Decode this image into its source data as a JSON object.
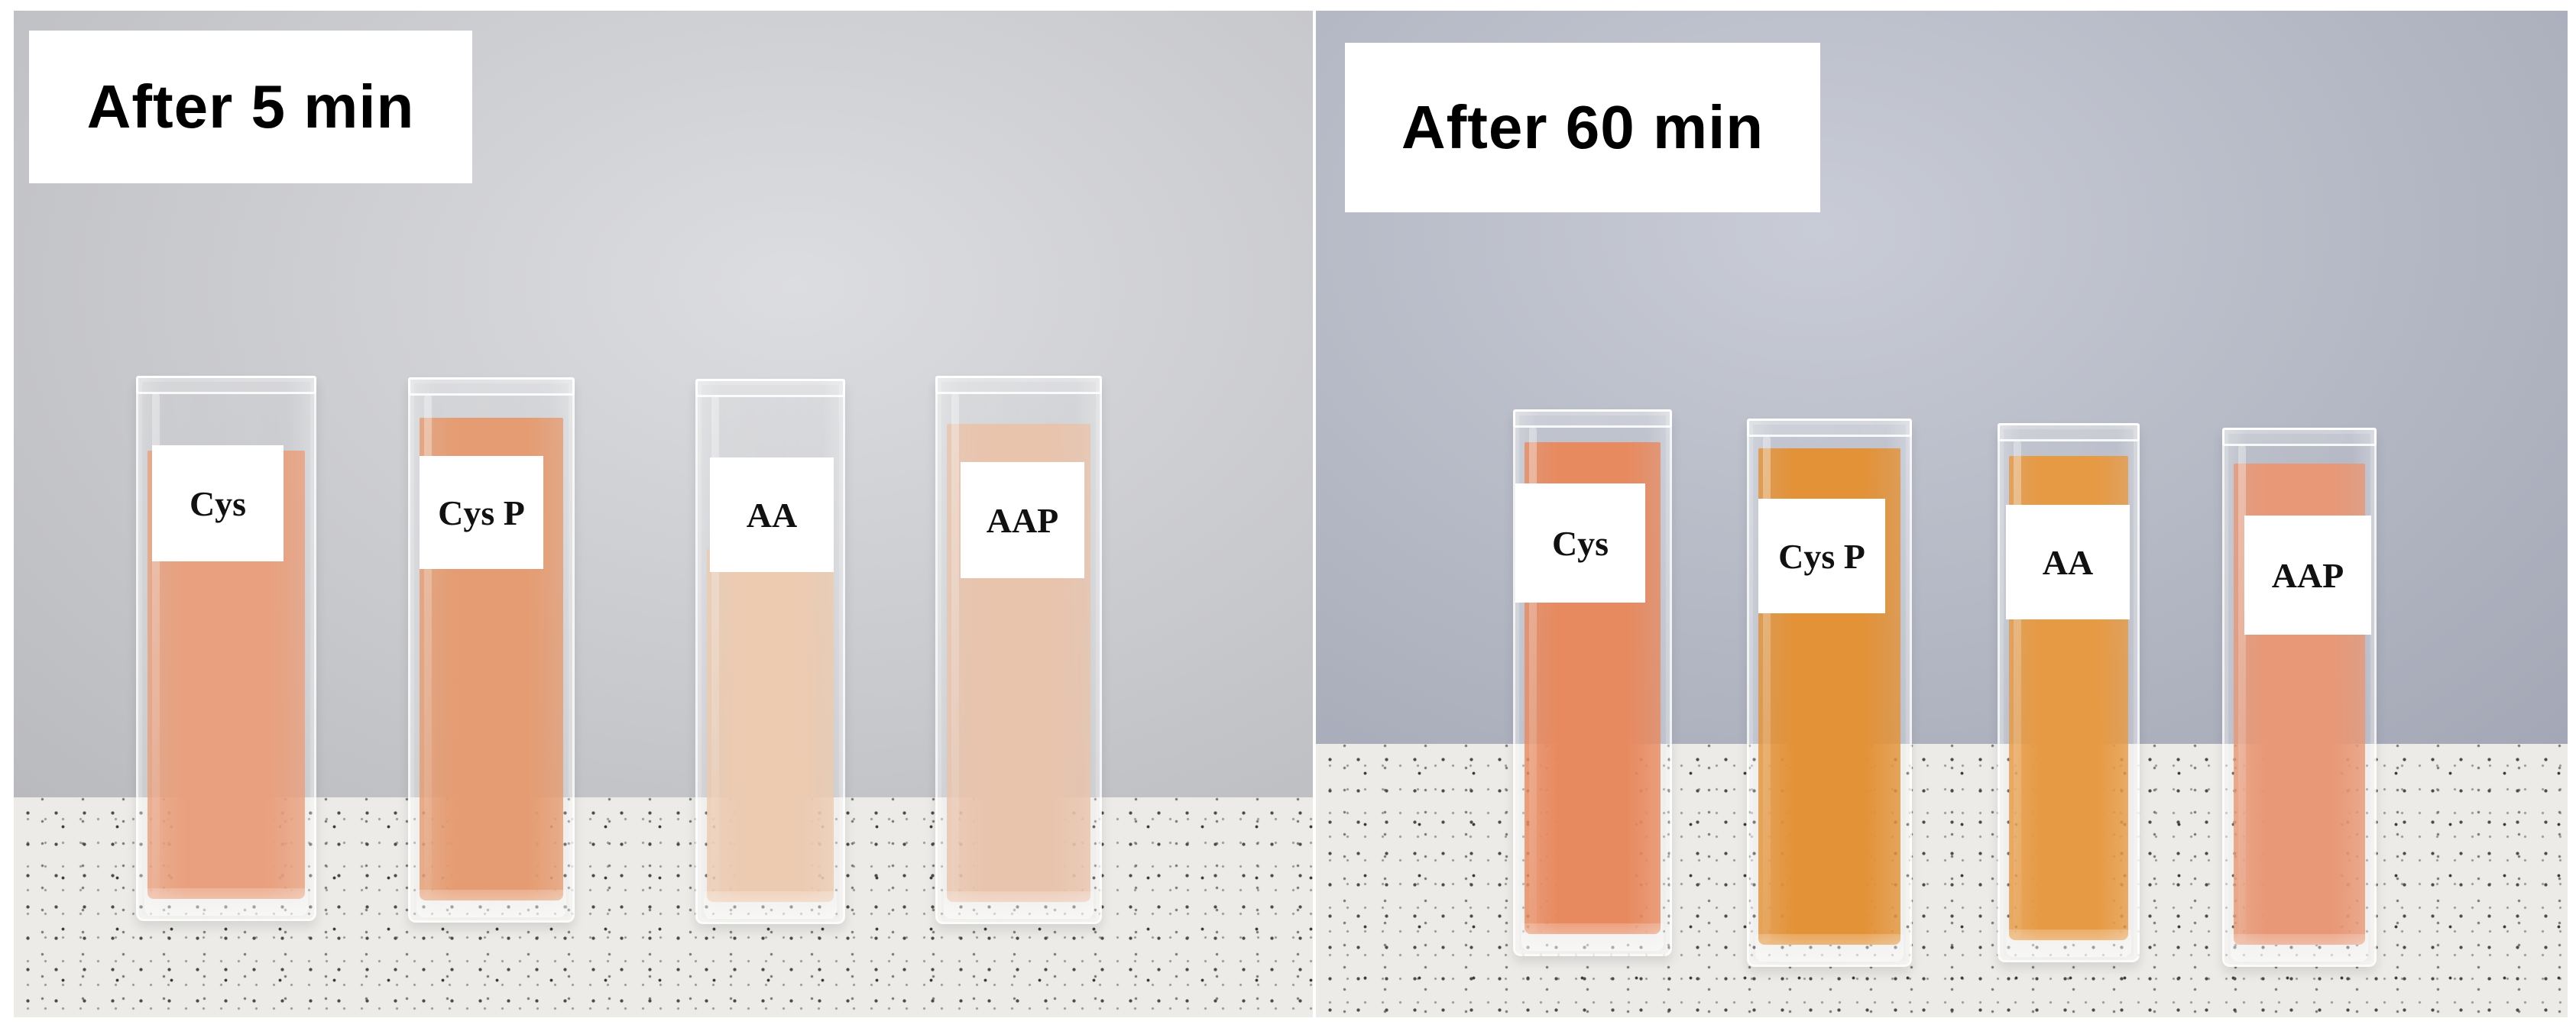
{
  "panels": [
    {
      "title": "After 5 min",
      "samples": [
        {
          "label": "Cys",
          "liquid_color": "#e9a07e"
        },
        {
          "label": "Cys P",
          "liquid_color": "#e59c72"
        },
        {
          "label": "AA",
          "liquid_color": "#eccbb1"
        },
        {
          "label": "AAP",
          "liquid_color": "#e9c4ad"
        }
      ]
    },
    {
      "title": "After 60 min",
      "samples": [
        {
          "label": "Cys",
          "liquid_color": "#e88a60"
        },
        {
          "label": "Cys P",
          "liquid_color": "#e39238"
        },
        {
          "label": "AA",
          "liquid_color": "#e79a44"
        },
        {
          "label": "AAP",
          "liquid_color": "#e89876"
        }
      ]
    }
  ]
}
